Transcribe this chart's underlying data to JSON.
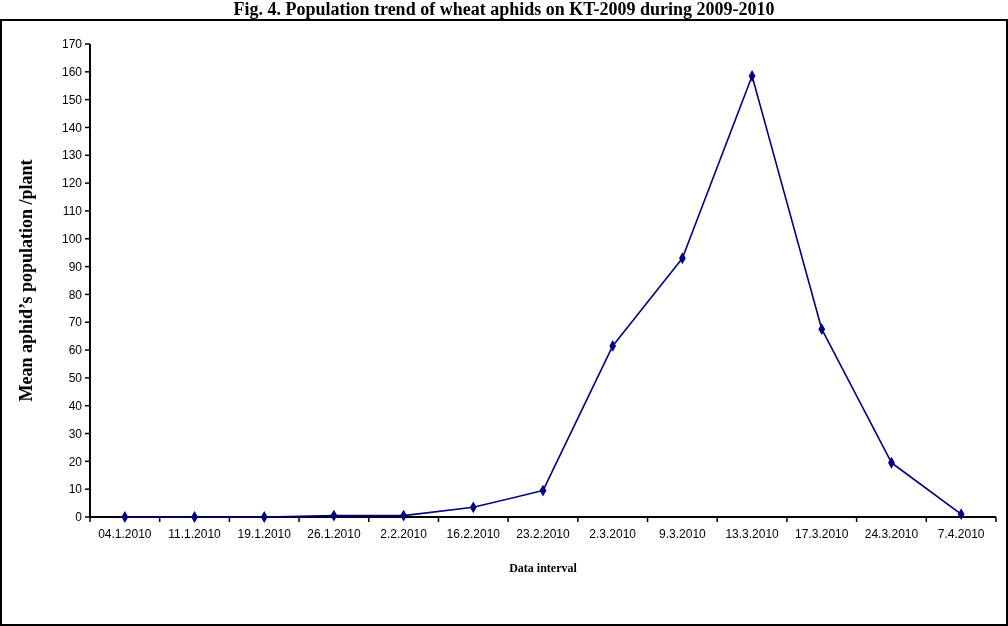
{
  "chart_data": {
    "type": "line",
    "title": "Fig. 4.    Population trend of wheat aphids on KT-2009 during 2009-2010",
    "xlabel": "Data interval",
    "ylabel": "Mean aphid’s population /plant",
    "categories": [
      "04.1.2010",
      "11.1.2010",
      "19.1.2010",
      "26.1.2010",
      "2.2.2010",
      "16.2.2010",
      "23.2.2010",
      "2.3.2010",
      "9.3.2010",
      "13.3.2010",
      "17.3.2010",
      "24.3.2010",
      "7.4.2010"
    ],
    "series": [
      {
        "color": "#000080",
        "values": [
          0,
          0,
          0,
          0.5,
          0.5,
          3.5,
          9.5,
          61.5,
          93,
          158.5,
          67.5,
          19.5,
          1
        ]
      }
    ],
    "ylim": [
      0,
      170
    ],
    "yticks": [
      0,
      10,
      20,
      30,
      40,
      50,
      60,
      70,
      80,
      90,
      100,
      110,
      120,
      130,
      140,
      150,
      160,
      170
    ],
    "grid": false,
    "marker": "diamond",
    "line_style": "solid"
  }
}
